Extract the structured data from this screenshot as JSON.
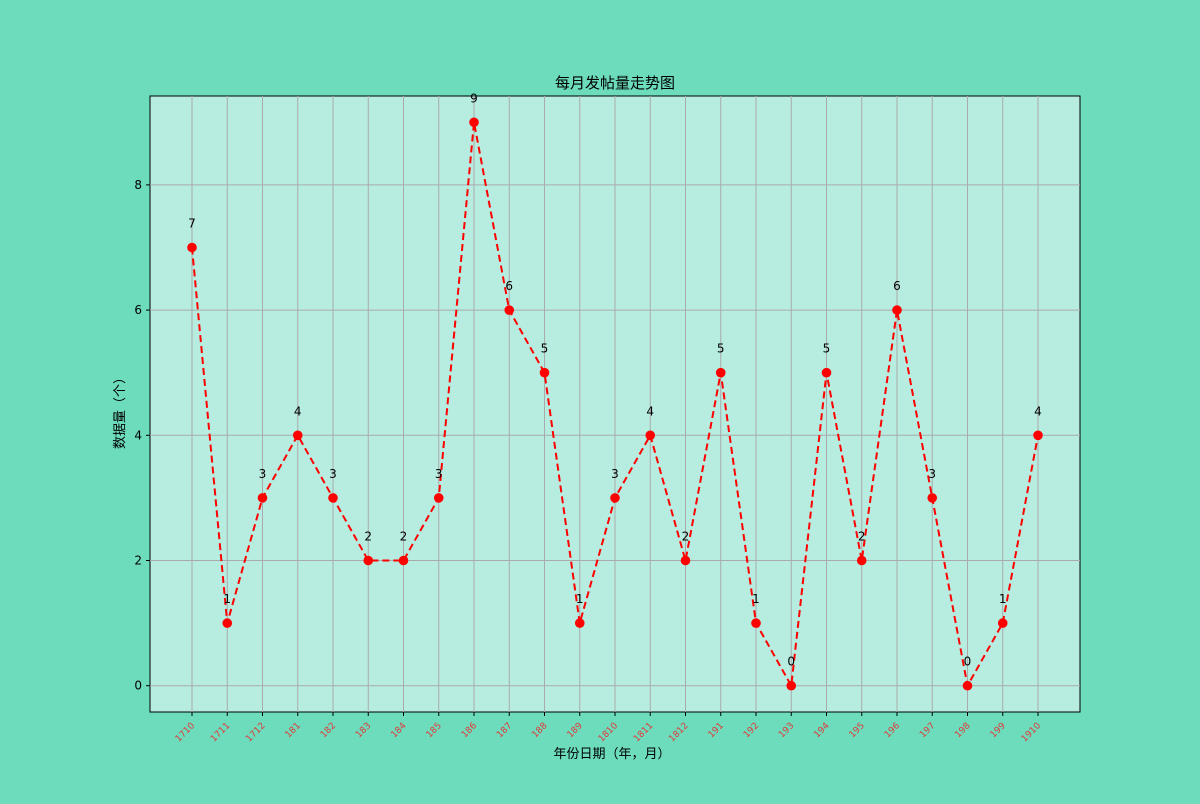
{
  "colors": {
    "figure_background": "#6cdcbc",
    "plot_background": "#b6ede0",
    "grid": "#aaaaaa",
    "line": "#ff0000",
    "marker": "#ff0000",
    "x_tick_label": "#e03a3a",
    "text": "#000000"
  },
  "chart_data": {
    "type": "line",
    "title": "每月发帖量走势图",
    "xlabel": "年份日期（年，月）",
    "ylabel": "数据量（个）",
    "categories": [
      "1710",
      "1711",
      "1712",
      "181",
      "182",
      "183",
      "184",
      "185",
      "186",
      "187",
      "188",
      "189",
      "1810",
      "1811",
      "1812",
      "191",
      "192",
      "193",
      "194",
      "195",
      "196",
      "197",
      "198",
      "199",
      "1910"
    ],
    "series": [
      {
        "values": [
          7,
          1,
          3,
          4,
          3,
          2,
          2,
          3,
          9,
          6,
          5,
          1,
          3,
          4,
          2,
          5,
          1,
          0,
          5,
          2,
          6,
          3,
          0,
          1,
          4
        ],
        "line_style": "dashed",
        "marker": "circle"
      }
    ],
    "ylim": [
      -0.42,
      9.42
    ],
    "yticks": [
      0,
      2,
      4,
      6,
      8
    ],
    "grid": true,
    "data_labels": true
  }
}
